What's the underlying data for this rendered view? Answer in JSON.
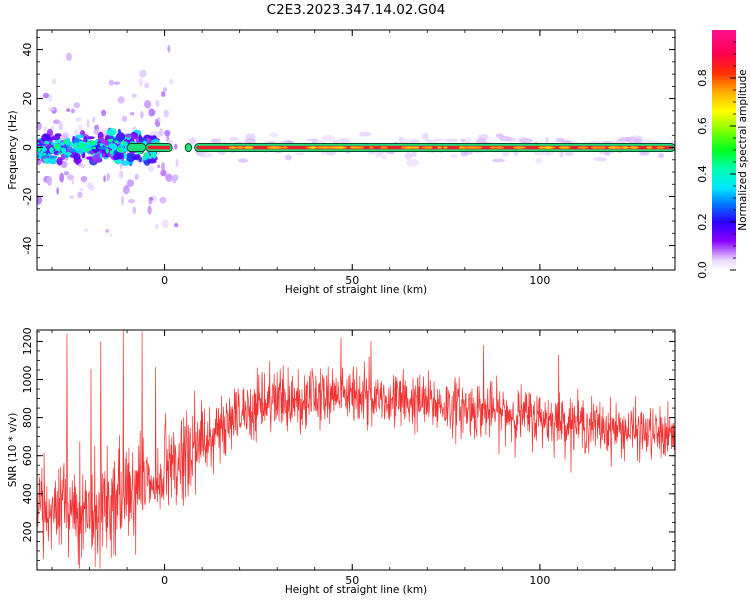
{
  "figure_title": "C2E3.2023.347.14.02.G04",
  "colors": {
    "snr_line": "#f03232",
    "track_core": "#e8202a",
    "track_halo": "#1ee07a",
    "track_edge": "#0a4a2a"
  },
  "chart_data": [
    {
      "type": "heatmap",
      "title": "",
      "xlabel": "Height of straight line (km)",
      "ylabel": "Frequency (Hz)",
      "xlim": [
        -34,
        136
      ],
      "ylim": [
        -50,
        48
      ],
      "xticks": [
        0,
        50,
        100
      ],
      "yticks": [
        -40,
        -20,
        0,
        20,
        40
      ],
      "grid": false,
      "colorbar": {
        "label": "Normalized spectral amplitude",
        "range": [
          0.0,
          1.0
        ],
        "ticks": [
          0.0,
          0.2,
          0.4,
          0.6,
          0.8
        ],
        "colormap": "gist_ncar-like (white, violet, blue, cyan, green, yellow, orange, red, pink)"
      },
      "features": {
        "main_track_frequency_hz": 0,
        "main_track_x_range_km": [
          -5,
          136
        ],
        "scattered_energy_x_range_km": [
          -34,
          0
        ],
        "scattered_energy_freq_range_hz": [
          -45,
          45
        ],
        "track_gaps_km": [
          2,
          7
        ]
      }
    },
    {
      "type": "line",
      "title": "",
      "xlabel": "Height of straight line (km)",
      "ylabel": "SNR (10 * v/v)",
      "xlim": [
        -34,
        136
      ],
      "ylim": [
        0,
        1260
      ],
      "xticks": [
        0,
        50,
        100
      ],
      "yticks": [
        200,
        400,
        600,
        800,
        1000,
        1200
      ],
      "grid": false,
      "series": [
        {
          "color": "#f03232",
          "x_step_km": 0.1,
          "trend": [
            {
              "x": -34,
              "y": 300
            },
            {
              "x": -20,
              "y": 320
            },
            {
              "x": -8,
              "y": 450
            },
            {
              "x": 0,
              "y": 520
            },
            {
              "x": 10,
              "y": 660
            },
            {
              "x": 20,
              "y": 820
            },
            {
              "x": 30,
              "y": 880
            },
            {
              "x": 40,
              "y": 920
            },
            {
              "x": 50,
              "y": 920
            },
            {
              "x": 60,
              "y": 900
            },
            {
              "x": 80,
              "y": 850
            },
            {
              "x": 100,
              "y": 800
            },
            {
              "x": 120,
              "y": 740
            },
            {
              "x": 136,
              "y": 700
            }
          ],
          "spread_env": [
            {
              "x": -34,
              "y": 200
            },
            {
              "x": 0,
              "y": 250
            },
            {
              "x": 20,
              "y": 150
            },
            {
              "x": 136,
              "y": 120
            }
          ],
          "spikes": [
            {
              "x": -26,
              "y": 1240
            },
            {
              "x": -17,
              "y": 1200
            },
            {
              "x": -11,
              "y": 1260
            },
            {
              "x": -6,
              "y": 1250
            },
            {
              "x": 8,
              "y": 940
            },
            {
              "x": 47,
              "y": 1220
            },
            {
              "x": 55,
              "y": 1200
            },
            {
              "x": 85,
              "y": 1180
            },
            {
              "x": 105,
              "y": 1130
            }
          ]
        }
      ]
    }
  ]
}
